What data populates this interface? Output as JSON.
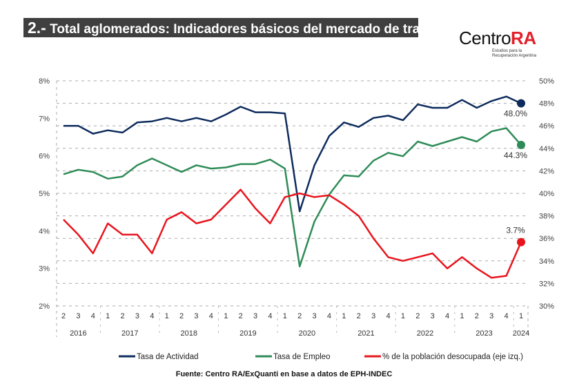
{
  "header": {
    "title_number": "2.-",
    "title": "Total aglomerados: Indicadores básicos del mercado de trabajo",
    "logo_main": "Centro",
    "logo_accent": "RA",
    "logo_sub": "Estudios para la Recuperación Argentina"
  },
  "source": "Fuente: Centro RA/ExQuanti en base a datos de EPH-INDEC",
  "chart_data": {
    "type": "line",
    "title": "Total aglomerados: Indicadores básicos del mercado de trabajo",
    "quarters": [
      "2",
      "3",
      "4",
      "1",
      "2",
      "3",
      "4",
      "1",
      "2",
      "3",
      "4",
      "1",
      "2",
      "3",
      "4",
      "1",
      "2",
      "3",
      "4",
      "1",
      "2",
      "3",
      "4",
      "1",
      "2",
      "3",
      "4",
      "1",
      "2",
      "3",
      "4",
      "1"
    ],
    "years": [
      {
        "label": "2016",
        "count": 3
      },
      {
        "label": "2017",
        "count": 4
      },
      {
        "label": "2018",
        "count": 4
      },
      {
        "label": "2019",
        "count": 4
      },
      {
        "label": "2020",
        "count": 4
      },
      {
        "label": "2021",
        "count": 4
      },
      {
        "label": "2022",
        "count": 4
      },
      {
        "label": "2023",
        "count": 4
      },
      {
        "label": "2024",
        "count": 1
      }
    ],
    "left_axis": {
      "ylim": [
        2,
        8
      ],
      "ticks": [
        "2%",
        "3%",
        "4%",
        "5%",
        "6%",
        "7%",
        "8%"
      ]
    },
    "right_axis": {
      "ylim": [
        30,
        50
      ],
      "ticks": [
        "30%",
        "32%",
        "34%",
        "36%",
        "38%",
        "40%",
        "42%",
        "44%",
        "46%",
        "48%",
        "50%"
      ]
    },
    "grid": true,
    "legend_position": "bottom",
    "series": [
      {
        "name": "Tasa de Actividad",
        "axis": "right",
        "color": "#0d2b5c",
        "end_label": "48.0%",
        "values": [
          46.0,
          46.0,
          45.3,
          45.6,
          45.4,
          46.3,
          46.4,
          46.7,
          46.4,
          46.7,
          46.4,
          47.0,
          47.7,
          47.2,
          47.2,
          47.1,
          38.4,
          42.5,
          45.1,
          46.3,
          45.9,
          46.7,
          46.9,
          46.5,
          47.9,
          47.6,
          47.6,
          48.3,
          47.6,
          48.2,
          48.6,
          48.0
        ]
      },
      {
        "name": "Tasa de Empleo",
        "axis": "right",
        "color": "#2e8b57",
        "end_label": "44.3%",
        "values": [
          41.7,
          42.1,
          41.9,
          41.3,
          41.5,
          42.5,
          43.1,
          42.5,
          41.9,
          42.5,
          42.2,
          42.3,
          42.6,
          42.6,
          43.0,
          42.2,
          33.5,
          37.5,
          39.9,
          41.6,
          41.5,
          42.9,
          43.6,
          43.3,
          44.6,
          44.2,
          44.6,
          45.0,
          44.6,
          45.5,
          45.8,
          44.3
        ]
      },
      {
        "name": "% de la población desocupada (eje izq.)",
        "axis": "left",
        "color": "#e8141c",
        "end_label": "3.7%",
        "values": [
          4.3,
          3.9,
          3.4,
          4.2,
          3.9,
          3.9,
          3.4,
          4.3,
          4.5,
          4.2,
          4.3,
          4.7,
          5.1,
          4.6,
          4.2,
          4.9,
          5.0,
          4.9,
          4.95,
          4.7,
          4.4,
          3.8,
          3.3,
          3.2,
          3.3,
          3.4,
          3.0,
          3.3,
          3.0,
          2.75,
          2.8,
          3.7
        ]
      }
    ]
  }
}
